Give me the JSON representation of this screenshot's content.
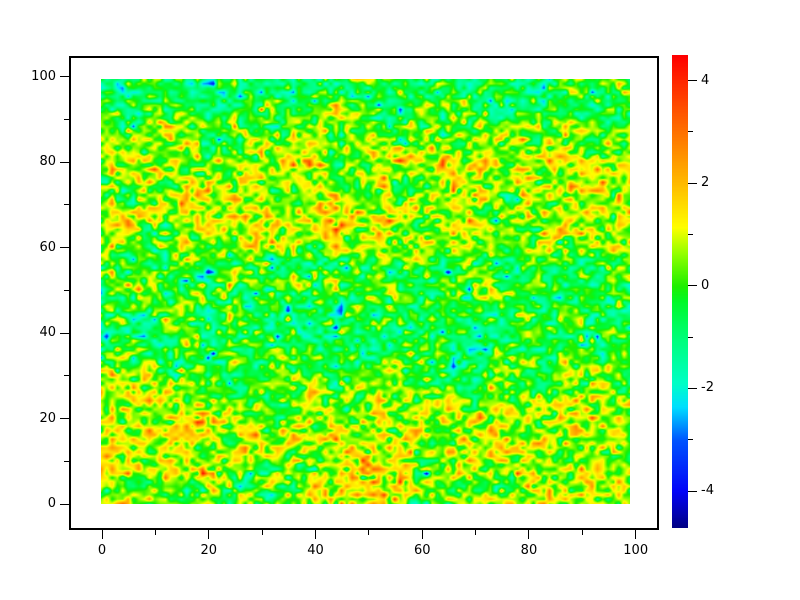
{
  "chart_data": {
    "type": "heatmap",
    "title": "",
    "x_axis": {
      "major_tick_values": [
        0,
        20,
        40,
        60,
        80,
        100
      ],
      "major_tick_labels": [
        "0",
        "20",
        "40",
        "60",
        "80",
        "100"
      ],
      "minor_tick_values": [
        10,
        30,
        50,
        70,
        90
      ],
      "data_range": [
        0,
        99
      ]
    },
    "y_axis": {
      "major_tick_values": [
        0,
        20,
        40,
        60,
        80,
        100
      ],
      "major_tick_labels": [
        "0",
        "20",
        "40",
        "60",
        "80",
        "100"
      ],
      "minor_tick_values": [
        10,
        30,
        50,
        70,
        90
      ],
      "data_range": [
        0,
        99
      ]
    },
    "colorbar": {
      "vmin": -4.7,
      "vmax": 4.5,
      "major_tick_values": [
        4,
        2,
        0,
        -2,
        -4
      ],
      "major_tick_labels": [
        "4",
        "2",
        "0",
        "-2",
        "-4"
      ],
      "minor_tick_values": [
        3,
        1,
        -1,
        -3
      ],
      "colormap_stops": [
        [
          -4.7,
          "#000085"
        ],
        [
          -4.0,
          "#0404F8"
        ],
        [
          -3.0,
          "#0055FF"
        ],
        [
          -2.35,
          "#00E0FF"
        ],
        [
          -1.9,
          "#00FFC8"
        ],
        [
          -1.0,
          "#00FF78"
        ],
        [
          -0.3,
          "#00FA28"
        ],
        [
          0.0,
          "#1EF000"
        ],
        [
          0.6,
          "#8CFF00"
        ],
        [
          1.15,
          "#FFFF00"
        ],
        [
          2.0,
          "#FFBB00"
        ],
        [
          3.0,
          "#FF7200"
        ],
        [
          4.0,
          "#FF2800"
        ],
        [
          4.5,
          "#FF0000"
        ]
      ]
    },
    "field": {
      "type": "smoothed-random-noise",
      "nx": 100,
      "ny": 100,
      "seed": 1337,
      "cell_noise_sigma": 1.05,
      "cluster_noise_sigma": 0.55,
      "cluster_cell_size": 4,
      "row_bias": [
        [
          0,
          0.5
        ],
        [
          6,
          0.55
        ],
        [
          13,
          0.75
        ],
        [
          20,
          0.65
        ],
        [
          27,
          0.2
        ],
        [
          34,
          -0.3
        ],
        [
          42,
          -0.5
        ],
        [
          52,
          -0.35
        ],
        [
          58,
          0.1
        ],
        [
          64,
          0.55
        ],
        [
          72,
          0.85
        ],
        [
          80,
          0.8
        ],
        [
          86,
          0.15
        ],
        [
          91,
          -0.3
        ],
        [
          96,
          -0.6
        ],
        [
          99,
          -0.55
        ]
      ]
    }
  },
  "colors": {
    "background": "#FFFFFF",
    "frame": "#000000",
    "tick": "#000000",
    "label": "#000000"
  }
}
